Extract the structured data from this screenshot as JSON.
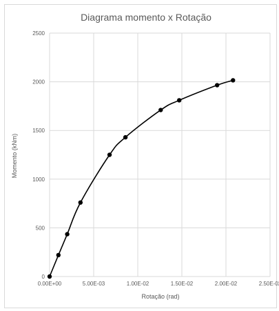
{
  "chart_data": {
    "type": "scatter",
    "title": "Diagrama momento x Rotação",
    "xlabel": "Rotação (rad)",
    "ylabel": "Momento (kNm)",
    "xlim": [
      0,
      0.025
    ],
    "ylim": [
      0,
      2500
    ],
    "x_ticks": [
      "0.00E+00",
      "5.00E-03",
      "1.00E-02",
      "1.50E-02",
      "2.00E-02",
      "2.50E-02"
    ],
    "y_ticks": [
      "0",
      "500",
      "1000",
      "1500",
      "2000",
      "2500"
    ],
    "grid": true,
    "legend": "none",
    "series": [
      {
        "x": [
          0,
          0.001,
          0.002,
          0.0035,
          0.0068,
          0.0086,
          0.0126,
          0.0147,
          0.019,
          0.0208
        ],
        "y": [
          0,
          220,
          435,
          760,
          1250,
          1430,
          1710,
          1810,
          1965,
          2015
        ],
        "color": "#000000",
        "smooth": true,
        "markers": true
      }
    ]
  }
}
